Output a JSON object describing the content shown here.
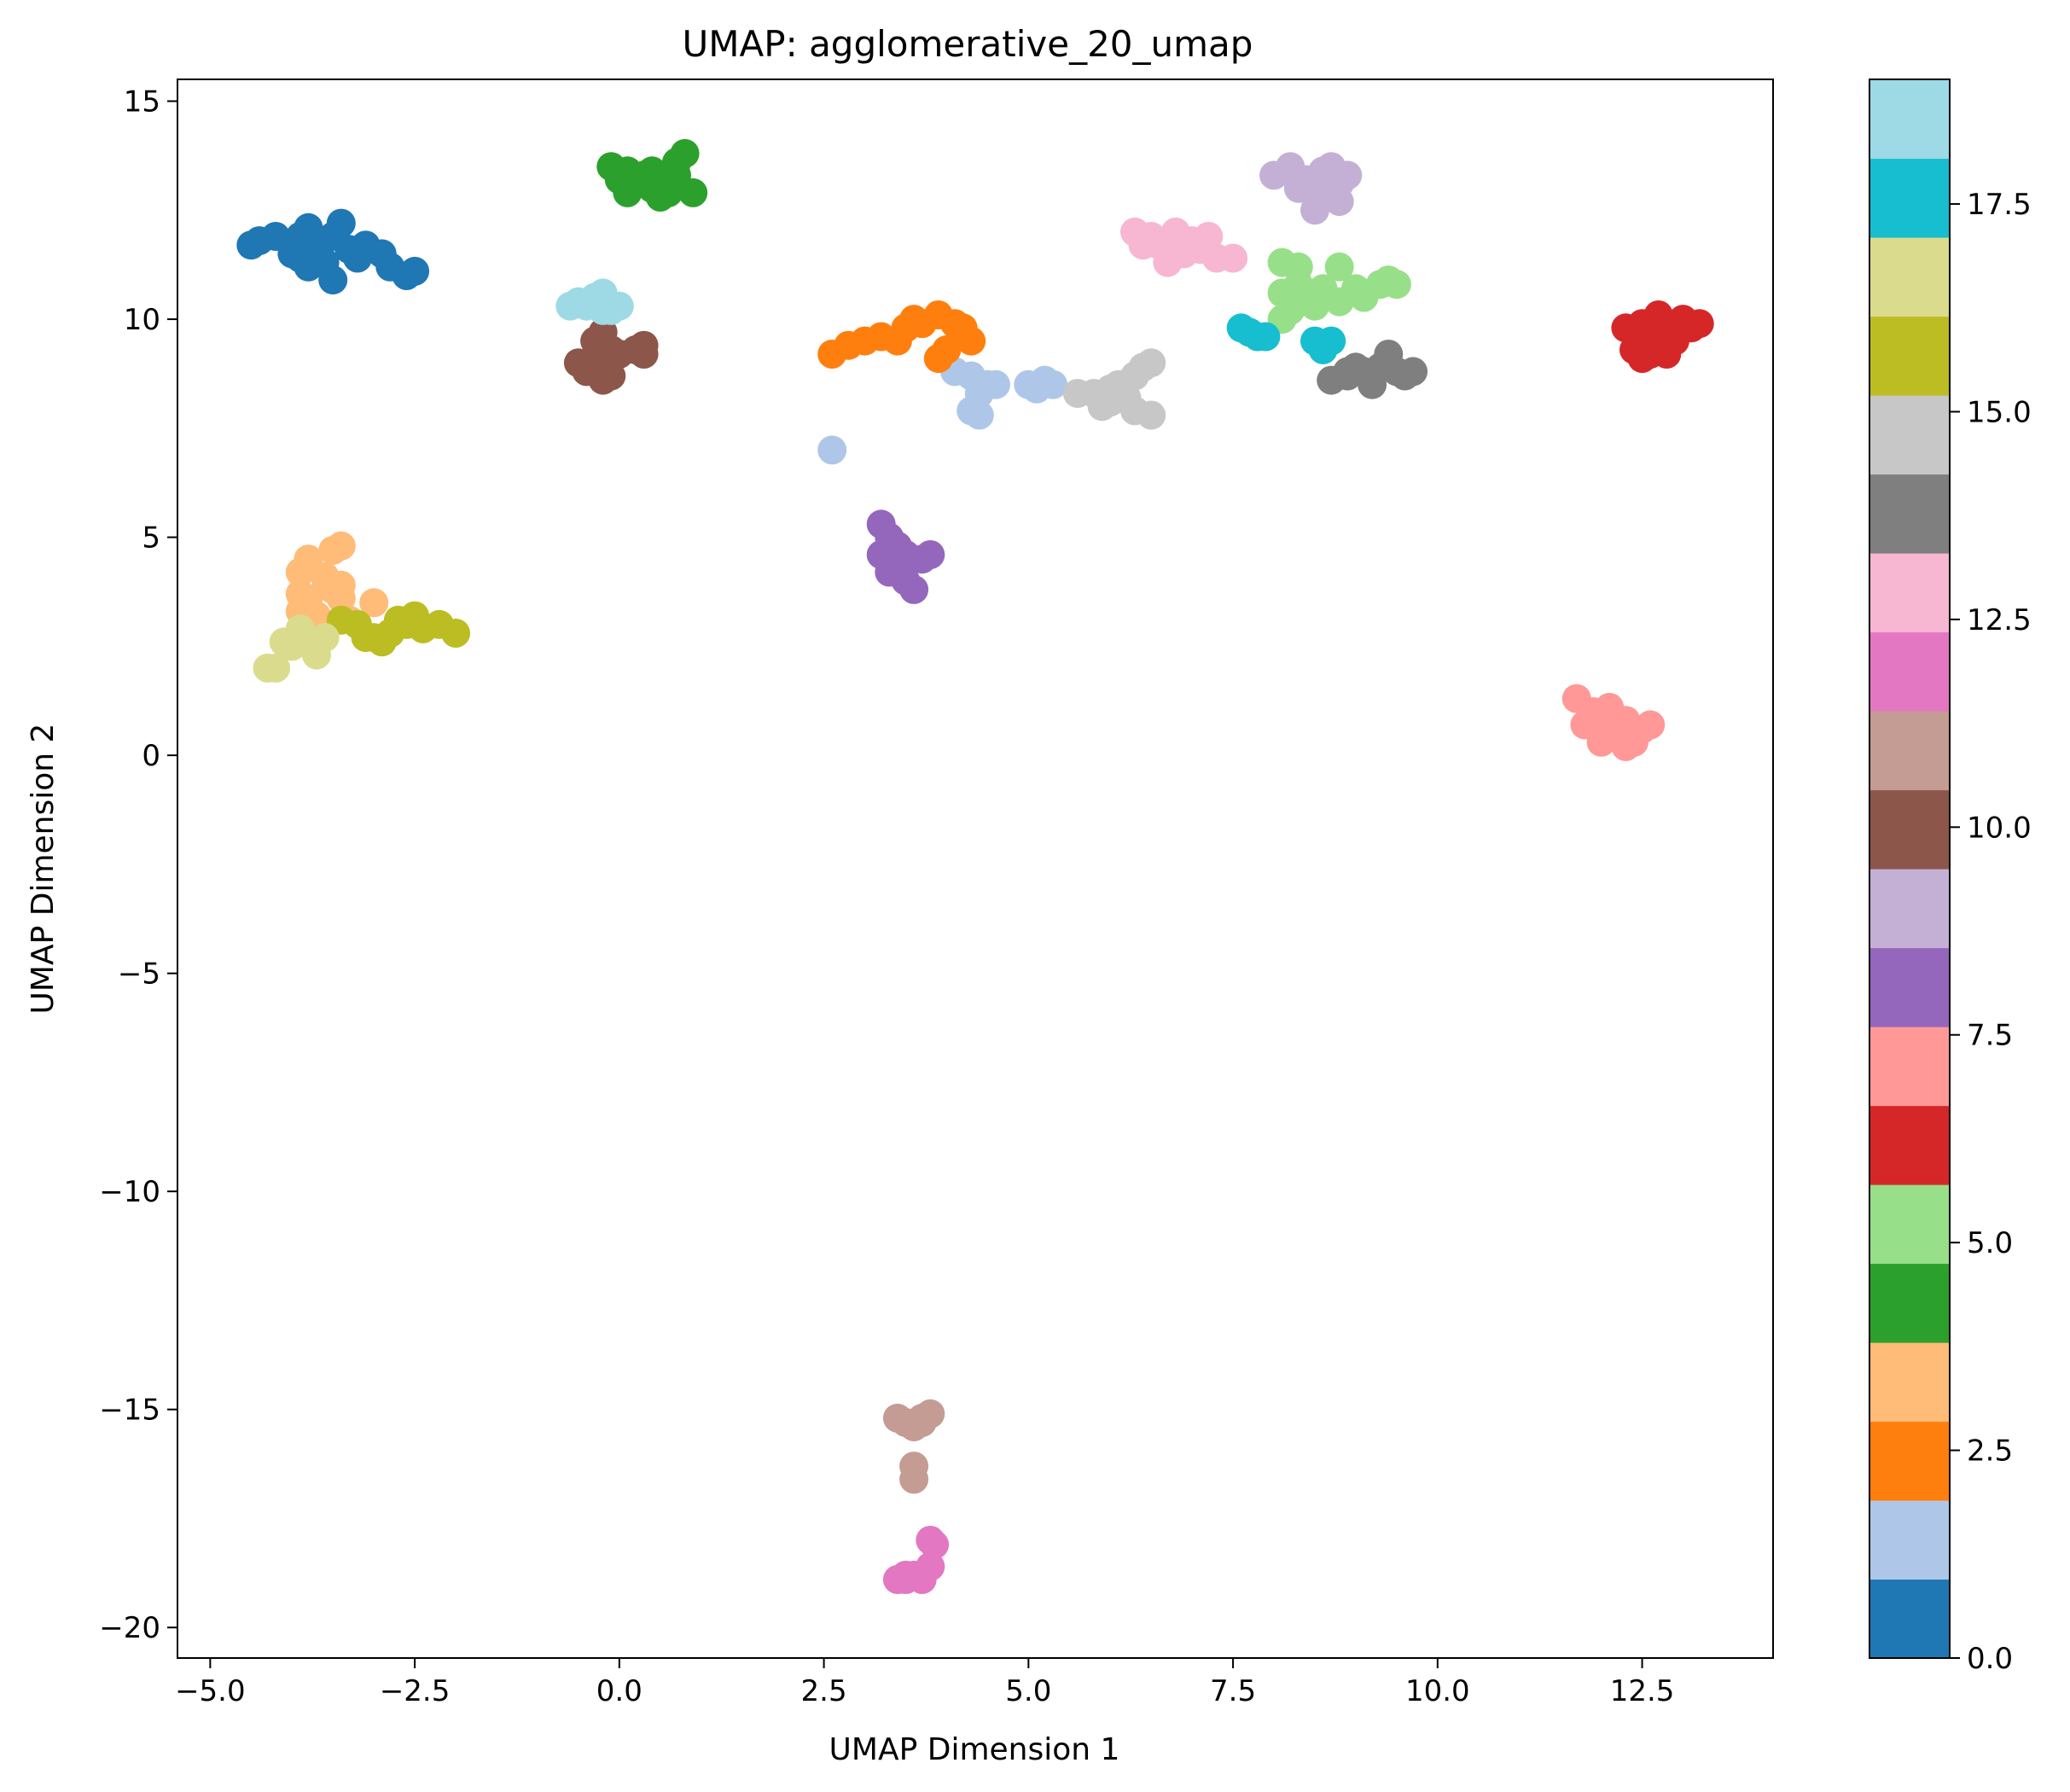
{
  "chart_data": {
    "type": "scatter",
    "title": "UMAP: agglomerative_20_umap",
    "xlabel": "UMAP Dimension 1",
    "ylabel": "UMAP Dimension 2",
    "xlim": [
      -5.4,
      14.1
    ],
    "ylim": [
      -20.7,
      15.5
    ],
    "x_ticks": [
      -5.0,
      -2.5,
      0.0,
      2.5,
      5.0,
      7.5,
      10.0,
      12.5
    ],
    "x_tick_labels": [
      "−5.0",
      "−2.5",
      "0.0",
      "2.5",
      "5.0",
      "7.5",
      "10.0",
      "12.5"
    ],
    "y_ticks": [
      15,
      10,
      5,
      0,
      -5,
      -10,
      -15,
      -20
    ],
    "y_tick_labels": [
      "15",
      "10",
      "5",
      "0",
      "−5",
      "−10",
      "−15",
      "−20"
    ],
    "grid": false,
    "colorbar": {
      "range": [
        0,
        19
      ],
      "ticks": [
        0.0,
        2.5,
        5.0,
        7.5,
        10.0,
        12.5,
        15.0,
        17.5
      ],
      "tick_labels": [
        "0.0",
        "2.5",
        "5.0",
        "7.5",
        "10.0",
        "12.5",
        "15.0",
        "17.5"
      ],
      "colors": [
        "#1f77b4",
        "#aec7e8",
        "#ff7f0e",
        "#ffbb78",
        "#2ca02c",
        "#98df8a",
        "#d62728",
        "#ff9896",
        "#9467bd",
        "#c5b0d5",
        "#8c564b",
        "#c49c94",
        "#e377c2",
        "#f7b6d2",
        "#7f7f7f",
        "#c7c7c7",
        "#bcbd22",
        "#dbdb8d",
        "#17becf",
        "#9edae5"
      ]
    },
    "series": [
      {
        "cluster": 0,
        "color": "#1f77b4",
        "points": [
          [
            -4.5,
            11.7
          ],
          [
            -4.4,
            11.8
          ],
          [
            -4.2,
            11.9
          ],
          [
            -4.0,
            11.5
          ],
          [
            -3.9,
            11.9
          ],
          [
            -3.8,
            12.1
          ],
          [
            -3.7,
            11.7
          ],
          [
            -3.6,
            11.3
          ],
          [
            -3.8,
            11.2
          ],
          [
            -3.5,
            11.9
          ],
          [
            -3.4,
            12.2
          ],
          [
            -3.3,
            11.6
          ],
          [
            -3.5,
            10.9
          ],
          [
            -3.1,
            11.7
          ],
          [
            -2.9,
            11.5
          ],
          [
            -2.8,
            11.2
          ],
          [
            -2.6,
            11.0
          ],
          [
            -2.5,
            11.1
          ],
          [
            -3.2,
            11.4
          ],
          [
            -3.9,
            11.4
          ]
        ]
      },
      {
        "cluster": 1,
        "color": "#aec7e8",
        "points": [
          [
            2.6,
            7.0
          ],
          [
            4.1,
            8.8
          ],
          [
            4.3,
            8.7
          ],
          [
            4.4,
            8.3
          ],
          [
            4.5,
            8.5
          ],
          [
            4.6,
            8.5
          ],
          [
            4.3,
            7.9
          ],
          [
            4.4,
            7.8
          ],
          [
            5.0,
            8.5
          ],
          [
            5.1,
            8.4
          ],
          [
            5.2,
            8.6
          ],
          [
            5.3,
            8.5
          ]
        ]
      },
      {
        "cluster": 2,
        "color": "#ff7f0e",
        "points": [
          [
            2.6,
            9.2
          ],
          [
            2.8,
            9.4
          ],
          [
            3.0,
            9.5
          ],
          [
            3.2,
            9.6
          ],
          [
            3.4,
            9.5
          ],
          [
            3.5,
            9.8
          ],
          [
            3.7,
            9.9
          ],
          [
            3.9,
            10.1
          ],
          [
            4.1,
            9.9
          ],
          [
            4.2,
            9.6
          ],
          [
            4.3,
            9.5
          ],
          [
            4.0,
            9.3
          ],
          [
            3.9,
            9.1
          ],
          [
            3.6,
            10.0
          ],
          [
            4.2,
            9.8
          ]
        ]
      },
      {
        "cluster": 3,
        "color": "#ffbb78",
        "points": [
          [
            -3.9,
            4.2
          ],
          [
            -3.8,
            4.5
          ],
          [
            -3.5,
            4.7
          ],
          [
            -3.4,
            4.8
          ],
          [
            -3.6,
            4.1
          ],
          [
            -3.5,
            3.8
          ],
          [
            -3.4,
            3.6
          ],
          [
            -3.8,
            3.6
          ],
          [
            -3.9,
            3.3
          ],
          [
            -3.7,
            3.2
          ],
          [
            -3.3,
            3.1
          ],
          [
            -3.0,
            3.5
          ],
          [
            -3.6,
            3.0
          ],
          [
            -3.9,
            3.7
          ],
          [
            -3.4,
            3.9
          ]
        ]
      },
      {
        "cluster": 4,
        "color": "#2ca02c",
        "points": [
          [
            -0.1,
            13.5
          ],
          [
            0.0,
            13.2
          ],
          [
            0.1,
            13.4
          ],
          [
            0.1,
            12.9
          ],
          [
            0.3,
            13.3
          ],
          [
            0.4,
            13.0
          ],
          [
            0.5,
            12.8
          ],
          [
            0.6,
            13.2
          ],
          [
            0.7,
            13.6
          ],
          [
            0.8,
            13.8
          ],
          [
            0.9,
            12.9
          ],
          [
            0.2,
            13.1
          ],
          [
            0.4,
            13.4
          ],
          [
            0.6,
            12.9
          ],
          [
            0.7,
            13.3
          ]
        ]
      },
      {
        "cluster": 5,
        "color": "#98df8a",
        "points": [
          [
            8.1,
            11.3
          ],
          [
            8.3,
            11.2
          ],
          [
            8.1,
            10.6
          ],
          [
            8.3,
            10.8
          ],
          [
            8.4,
            10.5
          ],
          [
            8.5,
            10.3
          ],
          [
            8.6,
            10.7
          ],
          [
            8.8,
            11.2
          ],
          [
            8.8,
            10.4
          ],
          [
            9.0,
            10.7
          ],
          [
            9.1,
            10.5
          ],
          [
            9.3,
            10.8
          ],
          [
            9.4,
            10.9
          ],
          [
            9.5,
            10.8
          ],
          [
            8.1,
            10.0
          ],
          [
            8.2,
            10.2
          ]
        ]
      },
      {
        "cluster": 6,
        "color": "#d62728",
        "points": [
          [
            12.3,
            9.8
          ],
          [
            12.5,
            9.9
          ],
          [
            12.6,
            9.6
          ],
          [
            12.7,
            10.1
          ],
          [
            12.8,
            9.8
          ],
          [
            12.9,
            9.5
          ],
          [
            13.0,
            10.0
          ],
          [
            13.1,
            9.8
          ],
          [
            13.2,
            9.9
          ],
          [
            12.6,
            9.2
          ],
          [
            12.7,
            9.3
          ],
          [
            12.8,
            9.2
          ],
          [
            12.4,
            9.3
          ],
          [
            12.5,
            9.1
          ]
        ]
      },
      {
        "cluster": 7,
        "color": "#ff9896",
        "points": [
          [
            11.7,
            1.3
          ],
          [
            11.9,
            1.0
          ],
          [
            12.0,
            0.7
          ],
          [
            12.1,
            1.1
          ],
          [
            12.2,
            0.5
          ],
          [
            12.3,
            0.8
          ],
          [
            12.4,
            0.3
          ],
          [
            12.5,
            0.6
          ],
          [
            12.6,
            0.7
          ],
          [
            11.8,
            0.7
          ],
          [
            12.0,
            0.3
          ],
          [
            12.3,
            0.2
          ]
        ]
      },
      {
        "cluster": 8,
        "color": "#9467bd",
        "points": [
          [
            3.2,
            5.3
          ],
          [
            3.3,
            5.0
          ],
          [
            3.2,
            4.6
          ],
          [
            3.3,
            4.2
          ],
          [
            3.4,
            4.8
          ],
          [
            3.4,
            4.4
          ],
          [
            3.5,
            4.0
          ],
          [
            3.6,
            3.8
          ],
          [
            3.7,
            4.5
          ],
          [
            3.8,
            4.6
          ],
          [
            3.5,
            4.6
          ],
          [
            3.3,
            4.5
          ]
        ]
      },
      {
        "cluster": 9,
        "color": "#c5b0d5",
        "points": [
          [
            8.0,
            13.3
          ],
          [
            8.2,
            13.4
          ],
          [
            8.3,
            13.0
          ],
          [
            8.4,
            13.2
          ],
          [
            8.5,
            12.8
          ],
          [
            8.5,
            12.5
          ],
          [
            8.6,
            13.4
          ],
          [
            8.7,
            13.5
          ],
          [
            8.8,
            13.1
          ],
          [
            8.8,
            12.7
          ],
          [
            8.9,
            13.3
          ],
          [
            8.2,
            13.5
          ],
          [
            8.6,
            12.9
          ]
        ]
      },
      {
        "cluster": 10,
        "color": "#8c564b",
        "points": [
          [
            -0.5,
            9.0
          ],
          [
            -0.4,
            8.8
          ],
          [
            -0.3,
            9.1
          ],
          [
            -0.2,
            8.6
          ],
          [
            -0.1,
            8.7
          ],
          [
            -0.1,
            9.3
          ],
          [
            0.0,
            9.2
          ],
          [
            0.2,
            9.3
          ],
          [
            0.3,
            9.2
          ],
          [
            0.3,
            9.4
          ],
          [
            -0.2,
            9.7
          ],
          [
            -0.3,
            9.5
          ]
        ]
      },
      {
        "cluster": 11,
        "color": "#c49c94",
        "points": [
          [
            3.4,
            -15.2
          ],
          [
            3.5,
            -15.3
          ],
          [
            3.6,
            -15.4
          ],
          [
            3.7,
            -15.3
          ],
          [
            3.8,
            -15.1
          ],
          [
            3.6,
            -16.3
          ],
          [
            3.6,
            -16.6
          ],
          [
            3.7,
            -15.2
          ]
        ]
      },
      {
        "cluster": 12,
        "color": "#e377c2",
        "points": [
          [
            3.4,
            -18.9
          ],
          [
            3.5,
            -18.8
          ],
          [
            3.6,
            -18.8
          ],
          [
            3.7,
            -18.9
          ],
          [
            3.8,
            -18.6
          ],
          [
            3.8,
            -18.0
          ],
          [
            3.85,
            -18.1
          ],
          [
            3.5,
            -18.9
          ]
        ]
      },
      {
        "cluster": 13,
        "color": "#f7b6d2",
        "points": [
          [
            6.3,
            12.0
          ],
          [
            6.5,
            11.9
          ],
          [
            6.6,
            11.7
          ],
          [
            6.7,
            11.3
          ],
          [
            6.8,
            12.0
          ],
          [
            6.9,
            11.5
          ],
          [
            7.0,
            11.8
          ],
          [
            7.1,
            11.6
          ],
          [
            7.2,
            11.9
          ],
          [
            7.3,
            11.4
          ],
          [
            7.5,
            11.4
          ],
          [
            6.4,
            11.7
          ]
        ]
      },
      {
        "cluster": 14,
        "color": "#7f7f7f",
        "points": [
          [
            8.7,
            8.6
          ],
          [
            8.9,
            8.7
          ],
          [
            9.0,
            8.9
          ],
          [
            9.1,
            8.8
          ],
          [
            9.2,
            8.5
          ],
          [
            9.3,
            8.9
          ],
          [
            9.4,
            9.2
          ],
          [
            9.5,
            8.8
          ],
          [
            9.6,
            8.7
          ],
          [
            9.7,
            8.8
          ],
          [
            8.9,
            8.8
          ],
          [
            9.2,
            8.7
          ]
        ]
      },
      {
        "cluster": 15,
        "color": "#c7c7c7",
        "points": [
          [
            5.6,
            8.3
          ],
          [
            5.8,
            8.3
          ],
          [
            5.9,
            8.0
          ],
          [
            6.0,
            8.4
          ],
          [
            6.1,
            8.5
          ],
          [
            6.2,
            8.2
          ],
          [
            6.3,
            8.7
          ],
          [
            6.4,
            8.9
          ],
          [
            6.5,
            9.0
          ],
          [
            6.5,
            7.8
          ],
          [
            6.3,
            7.9
          ],
          [
            6.0,
            8.1
          ]
        ]
      },
      {
        "cluster": 16,
        "color": "#bcbd22",
        "points": [
          [
            -3.4,
            3.1
          ],
          [
            -3.2,
            3.0
          ],
          [
            -3.0,
            2.7
          ],
          [
            -2.8,
            2.8
          ],
          [
            -2.6,
            3.0
          ],
          [
            -2.5,
            3.2
          ],
          [
            -2.4,
            2.9
          ],
          [
            -2.2,
            3.0
          ],
          [
            -2.0,
            2.8
          ],
          [
            -2.9,
            2.6
          ],
          [
            -3.1,
            2.7
          ],
          [
            -2.7,
            3.1
          ]
        ]
      },
      {
        "cluster": 17,
        "color": "#dbdb8d",
        "points": [
          [
            -4.2,
            2.0
          ],
          [
            -4.1,
            2.6
          ],
          [
            -4.0,
            2.5
          ],
          [
            -3.9,
            2.9
          ],
          [
            -3.8,
            2.6
          ],
          [
            -3.7,
            2.3
          ],
          [
            -3.6,
            2.7
          ],
          [
            -4.3,
            2.0
          ]
        ]
      },
      {
        "cluster": 18,
        "color": "#17becf",
        "points": [
          [
            7.6,
            9.8
          ],
          [
            7.7,
            9.7
          ],
          [
            7.8,
            9.6
          ],
          [
            7.9,
            9.6
          ],
          [
            8.5,
            9.5
          ],
          [
            8.6,
            9.3
          ],
          [
            8.7,
            9.5
          ],
          [
            8.55,
            9.45
          ]
        ]
      },
      {
        "cluster": 19,
        "color": "#9edae5",
        "points": [
          [
            -0.6,
            10.3
          ],
          [
            -0.5,
            10.4
          ],
          [
            -0.4,
            10.3
          ],
          [
            -0.3,
            10.5
          ],
          [
            -0.2,
            10.6
          ],
          [
            -0.1,
            10.2
          ],
          [
            0.0,
            10.3
          ],
          [
            -0.2,
            10.2
          ]
        ]
      }
    ]
  }
}
